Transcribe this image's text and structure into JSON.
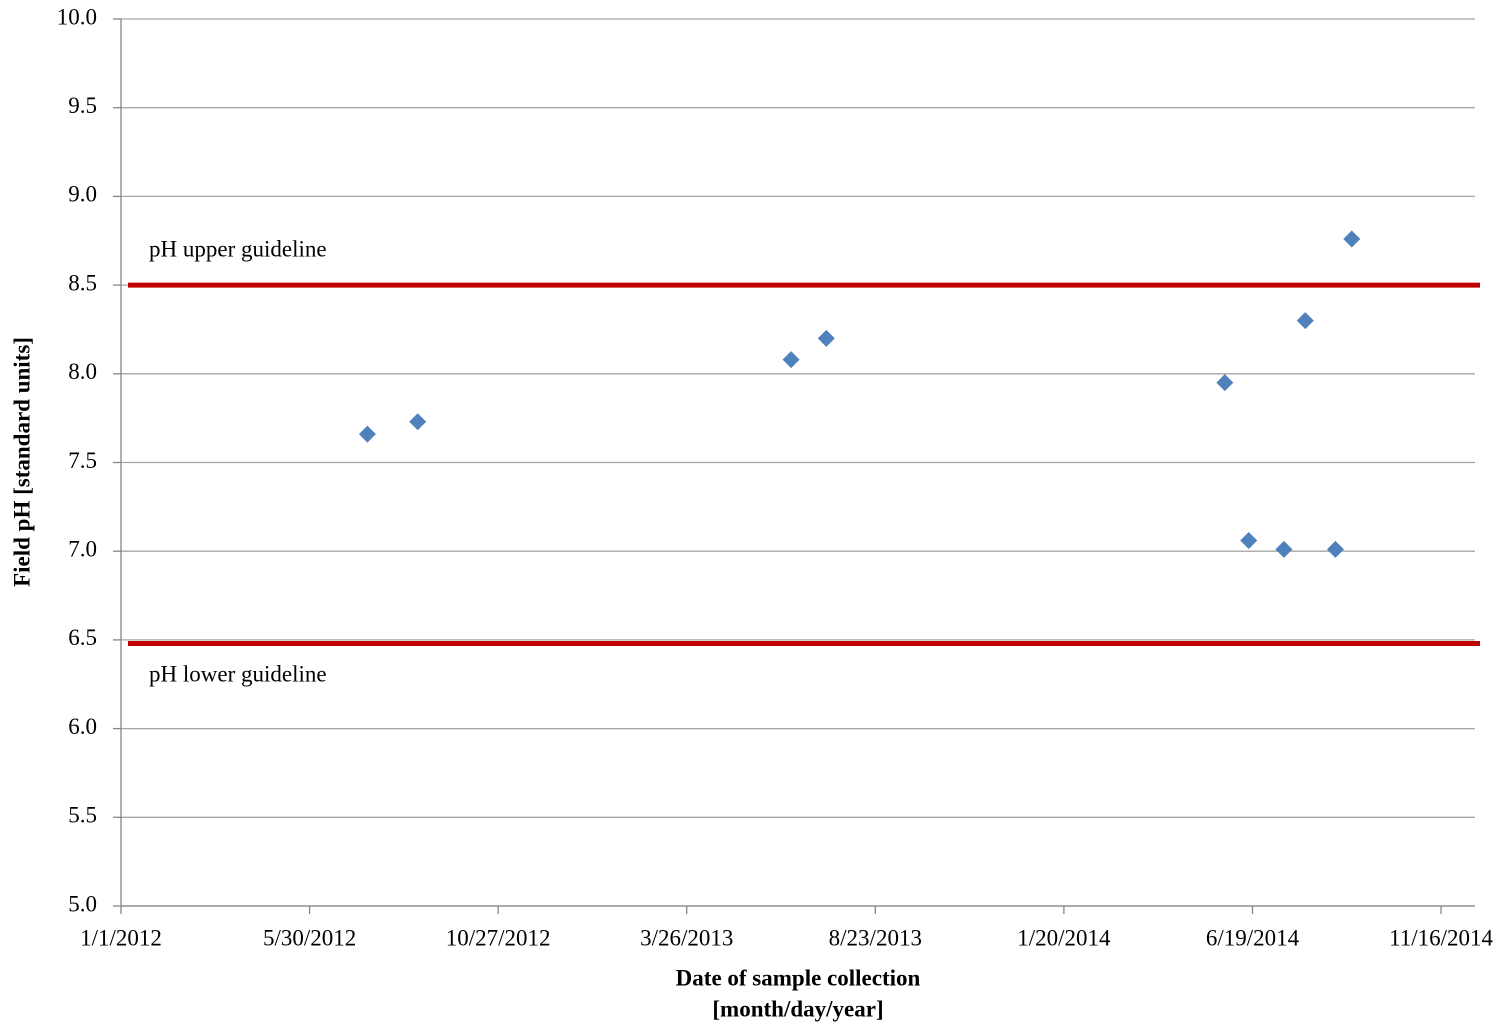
{
  "chart_data": {
    "type": "scatter",
    "x_label": [
      "Date of sample collection",
      "[month/day/year]"
    ],
    "y_label": "Field pH [standard units]",
    "x": [
      "2012-07-15",
      "2012-08-24",
      "2013-06-17",
      "2013-07-15",
      "2014-05-28",
      "2014-06-16",
      "2014-07-14",
      "2014-07-31",
      "2014-08-24",
      "2014-09-06"
    ],
    "series": [
      {
        "color": "#4f81bd",
        "values": [
          7.66,
          7.73,
          8.08,
          8.2,
          7.95,
          7.06,
          7.01,
          8.3,
          7.01,
          8.76
        ]
      }
    ],
    "xlim": [
      "2012-01-01",
      "2014-12-13"
    ],
    "xticks": [
      {
        "value": "2012-01-01",
        "label": "1/1/2012"
      },
      {
        "value": "2012-05-30",
        "label": "5/30/2012"
      },
      {
        "value": "2012-10-27",
        "label": "10/27/2012"
      },
      {
        "value": "2013-03-26",
        "label": "3/26/2013"
      },
      {
        "value": "2013-08-23",
        "label": "8/23/2013"
      },
      {
        "value": "2014-01-20",
        "label": "1/20/2014"
      },
      {
        "value": "2014-06-19",
        "label": "6/19/2014"
      },
      {
        "value": "2014-11-16",
        "label": "11/16/2014"
      }
    ],
    "ylim": [
      5,
      10
    ],
    "yticks": [
      {
        "value": 5,
        "label": "5.0"
      },
      {
        "value": 5.5,
        "label": "5.5"
      },
      {
        "value": 6,
        "label": "6.0"
      },
      {
        "value": 6.5,
        "label": "6.5"
      },
      {
        "value": 7,
        "label": "7.0"
      },
      {
        "value": 7.5,
        "label": "7.5"
      },
      {
        "value": 8,
        "label": "8.0"
      },
      {
        "value": 8.5,
        "label": "8.5"
      },
      {
        "value": 9,
        "label": "9.0"
      },
      {
        "value": 9.5,
        "label": "9.5"
      },
      {
        "value": 10,
        "label": "10.0"
      }
    ],
    "grid": true,
    "reference_lines": [
      {
        "value": 8.5,
        "label": "pH upper guideline",
        "color": "#c00000"
      },
      {
        "value": 6.48,
        "label": "pH lower guideline",
        "color": "#c00000"
      }
    ]
  }
}
